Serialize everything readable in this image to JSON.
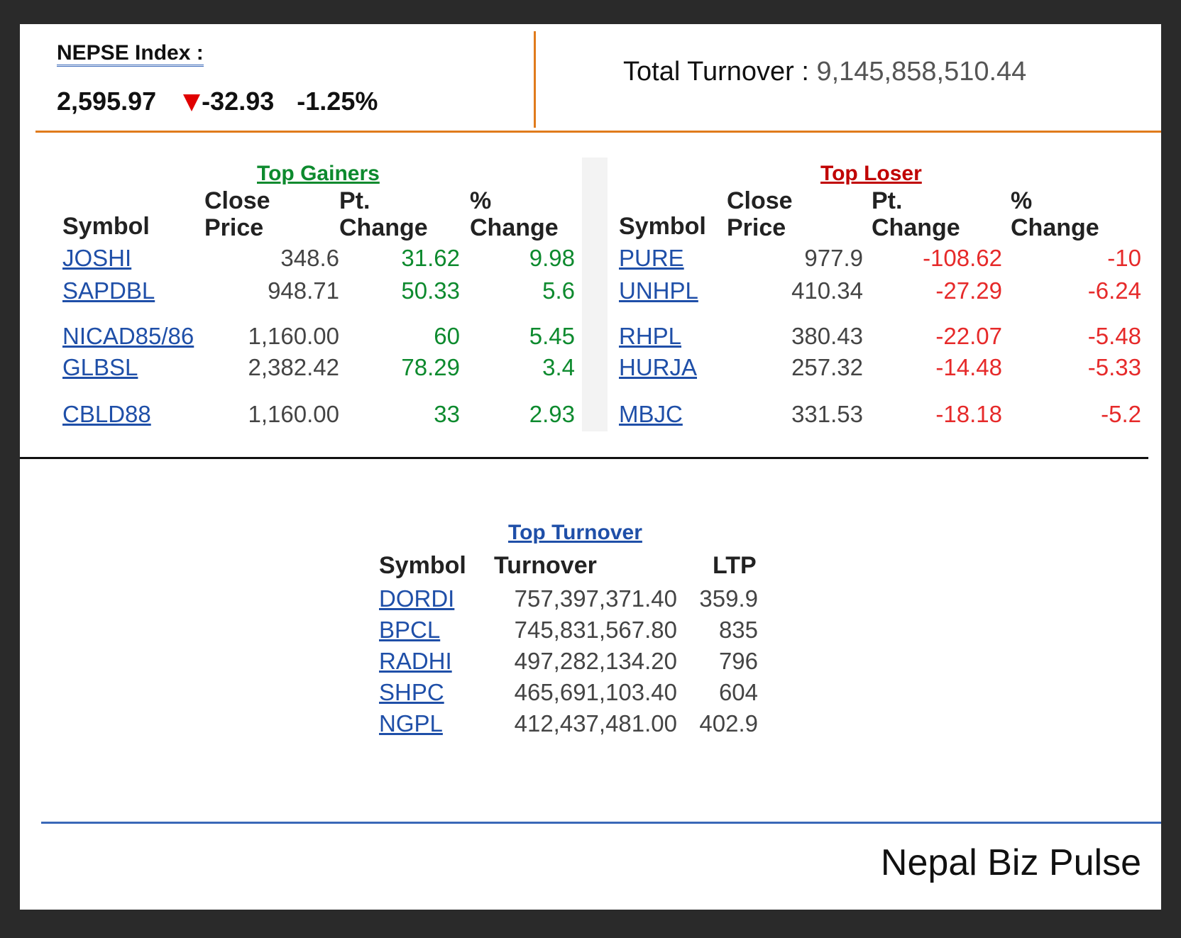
{
  "nepse": {
    "label": "NEPSE Index :",
    "value": "2,595.97",
    "direction_icon": "down-triangle-icon",
    "change": "-32.93",
    "percent": "-1.25%"
  },
  "turnover": {
    "label": "Total Turnover :",
    "value": "9,145,858,510.44"
  },
  "gainers": {
    "title": "Top Gainers",
    "headers": {
      "symbol": "Symbol",
      "close1": "Close",
      "close2": "Price",
      "pt1": "Pt.",
      "pt2": "Change",
      "pc1": "%",
      "pc2": "Change"
    },
    "rows": [
      {
        "symbol": "JOSHI",
        "close": "348.6",
        "pt": "31.62",
        "pc": "9.98"
      },
      {
        "symbol": "SAPDBL",
        "close": "948.71",
        "pt": "50.33",
        "pc": "5.6"
      },
      {
        "symbol": "NICAD85/86",
        "close": "1,160.00",
        "pt": "60",
        "pc": "5.45"
      },
      {
        "symbol": "GLBSL",
        "close": "2,382.42",
        "pt": "78.29",
        "pc": "3.4"
      },
      {
        "symbol": "CBLD88",
        "close": "1,160.00",
        "pt": "33",
        "pc": "2.93"
      }
    ]
  },
  "losers": {
    "title": "Top Loser",
    "headers": {
      "symbol": "Symbol",
      "close1": "Close",
      "close2": "Price",
      "pt1": "Pt.",
      "pt2": "Change",
      "pc1": "%",
      "pc2": "Change"
    },
    "rows": [
      {
        "symbol": "PURE",
        "close": "977.9",
        "pt": "-108.62",
        "pc": "-10"
      },
      {
        "symbol": "UNHPL",
        "close": "410.34",
        "pt": "-27.29",
        "pc": "-6.24"
      },
      {
        "symbol": "RHPL",
        "close": "380.43",
        "pt": "-22.07",
        "pc": "-5.48"
      },
      {
        "symbol": "HURJA",
        "close": "257.32",
        "pt": "-14.48",
        "pc": "-5.33"
      },
      {
        "symbol": "MBJC",
        "close": "331.53",
        "pt": "-18.18",
        "pc": "-5.2"
      }
    ]
  },
  "top_turnover": {
    "title": "Top Turnover",
    "headers": {
      "symbol": "Symbol",
      "turnover": "Turnover",
      "ltp": "LTP"
    },
    "rows": [
      {
        "symbol": "DORDI",
        "turnover": "757,397,371.40",
        "ltp": "359.9"
      },
      {
        "symbol": "BPCL",
        "turnover": "745,831,567.80",
        "ltp": "835"
      },
      {
        "symbol": "RADHI",
        "turnover": "497,282,134.20",
        "ltp": "796"
      },
      {
        "symbol": "SHPC",
        "turnover": "465,691,103.40",
        "ltp": "604"
      },
      {
        "symbol": "NGPL",
        "turnover": "412,437,481.00",
        "ltp": "402.9"
      }
    ]
  },
  "footer": {
    "brand": "Nepal Biz Pulse"
  },
  "colors": {
    "accent_orange": "#e07b1c",
    "gain_green": "#0d8a2e",
    "loss_red": "#e62a2a",
    "link_blue": "#1f4fa8",
    "rule_blue": "#3a68b8"
  }
}
